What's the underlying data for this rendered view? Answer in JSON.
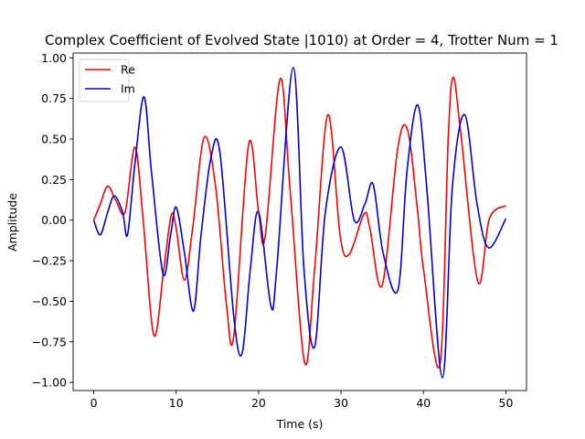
{
  "chart_data": {
    "type": "line",
    "title": "Complex Coefficient of Evolved State |1010⟩ at Order = 4, Trotter Num = 1",
    "xlabel": "Time (s)",
    "ylabel": "Amplitude",
    "xlim": [
      -2.5,
      52.5
    ],
    "ylim": [
      -1.05,
      1.03
    ],
    "xticks": [
      0,
      10,
      20,
      30,
      40,
      50
    ],
    "yticks": [
      -1.0,
      -0.75,
      -0.5,
      -0.25,
      0.0,
      0.25,
      0.5,
      0.75,
      1.0
    ],
    "xtick_labels": [
      "0",
      "10",
      "20",
      "30",
      "40",
      "50"
    ],
    "ytick_labels": [
      "−1.00",
      "−0.75",
      "−0.50",
      "−0.25",
      "0.00",
      "0.25",
      "0.50",
      "0.75",
      "1.00"
    ],
    "grid": false,
    "legend": "top-left",
    "series": [
      {
        "name": "Re",
        "color": "#ff0000",
        "x": [
          0,
          0.8,
          1.7,
          2.7,
          3.8,
          5.0,
          6.0,
          7.3,
          8.5,
          9.4,
          10.0,
          11.0,
          12.0,
          13.4,
          14.8,
          16.1,
          17.0,
          18.8,
          20.0,
          20.8,
          22.6,
          23.8,
          25.6,
          26.8,
          28.4,
          29.9,
          31.0,
          32.8,
          33.5,
          35.0,
          36.9,
          38.1,
          39.3,
          40.0,
          42.0,
          43.0,
          43.6,
          44.5,
          46.6,
          48.0,
          50.0
        ],
        "y": [
          0.0,
          0.1,
          0.21,
          0.12,
          0.05,
          0.45,
          0.0,
          -0.71,
          -0.3,
          0.03,
          -0.05,
          -0.37,
          -0.05,
          0.51,
          0.2,
          -0.52,
          -0.71,
          0.47,
          0.05,
          -0.1,
          0.87,
          0.2,
          -0.88,
          -0.3,
          0.65,
          -0.1,
          -0.21,
          0.04,
          -0.05,
          -0.4,
          0.45,
          0.55,
          0.05,
          -0.3,
          -0.89,
          0.5,
          0.88,
          0.55,
          -0.38,
          0.01,
          0.09
        ]
      },
      {
        "name": "Im",
        "color": "#0000dd",
        "x": [
          0,
          0.8,
          1.7,
          2.5,
          3.5,
          4.1,
          5.0,
          6.1,
          7.0,
          8.4,
          9.3,
          10.0,
          11.0,
          12.1,
          13.0,
          14.2,
          15.3,
          17.0,
          18.0,
          19.0,
          20.0,
          21.5,
          22.2,
          24.2,
          25.5,
          26.8,
          28.1,
          30.0,
          31.6,
          32.9,
          33.9,
          35.1,
          36.9,
          38.0,
          39.3,
          40.4,
          42.3,
          43.5,
          45.0,
          46.5,
          47.9,
          50.0
        ],
        "y": [
          0.0,
          -0.09,
          0.05,
          0.15,
          0.05,
          -0.09,
          0.35,
          0.76,
          0.3,
          -0.33,
          -0.1,
          0.08,
          -0.2,
          -0.56,
          -0.1,
          0.38,
          0.42,
          -0.6,
          -0.82,
          -0.3,
          0.05,
          -0.53,
          -0.3,
          0.94,
          -0.3,
          -0.78,
          0.05,
          0.45,
          0.0,
          0.1,
          0.22,
          -0.2,
          -0.43,
          0.3,
          0.71,
          0.2,
          -0.97,
          0.2,
          0.65,
          0.1,
          -0.17,
          0.01
        ]
      }
    ]
  }
}
